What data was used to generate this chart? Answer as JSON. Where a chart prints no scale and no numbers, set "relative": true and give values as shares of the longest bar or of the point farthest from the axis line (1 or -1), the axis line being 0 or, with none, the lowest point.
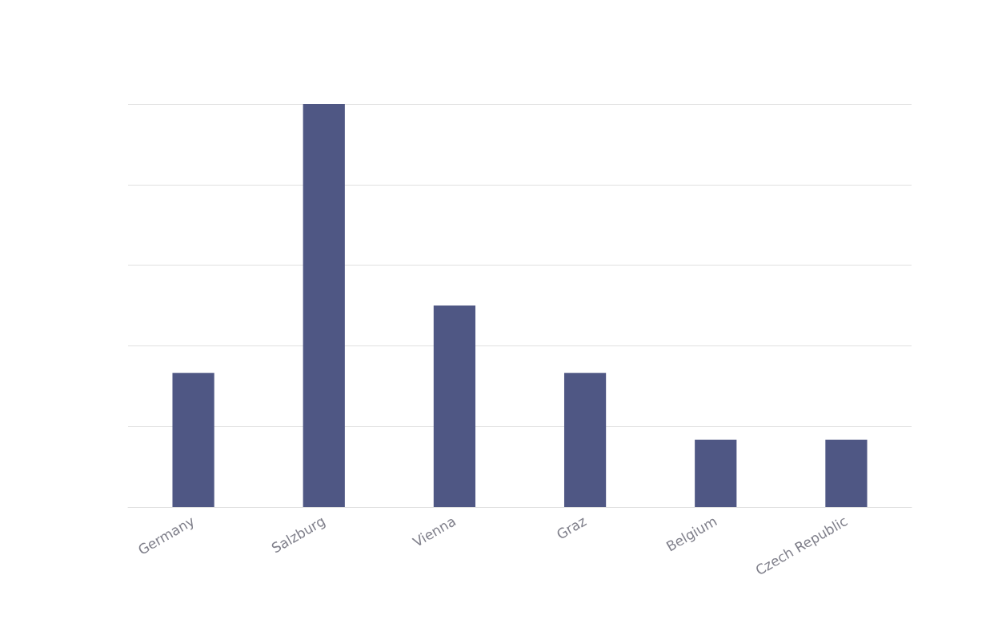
{
  "chart_data": {
    "type": "bar",
    "relative": true,
    "categories": [
      "Germany",
      "Salzburg",
      "Vienna",
      "Graz",
      "Belgium",
      "Czech Republic"
    ],
    "values": [
      0.333,
      1,
      0.5,
      0.333,
      0.167,
      0.167
    ],
    "color": "#4f5784",
    "grid": true
  }
}
